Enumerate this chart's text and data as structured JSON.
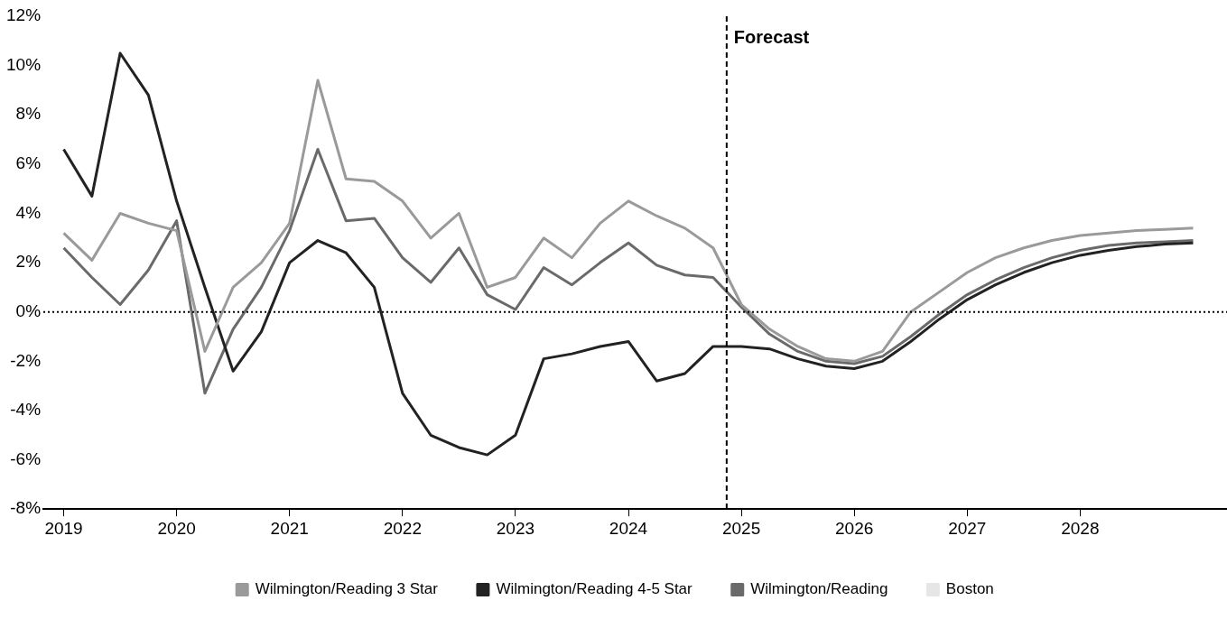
{
  "chart_data": {
    "type": "line",
    "x": [
      2019,
      2019.25,
      2019.5,
      2019.75,
      2020,
      2020.25,
      2020.5,
      2020.75,
      2021,
      2021.25,
      2021.5,
      2021.75,
      2022,
      2022.25,
      2022.5,
      2022.75,
      2023,
      2023.25,
      2023.5,
      2023.75,
      2024,
      2024.25,
      2024.5,
      2024.75,
      2025,
      2025.25,
      2025.5,
      2025.75,
      2026,
      2026.25,
      2026.5,
      2026.75,
      2027,
      2027.25,
      2027.5,
      2027.75,
      2028,
      2028.25,
      2028.5,
      2028.75,
      2029
    ],
    "series": [
      {
        "name": "Wilmington/Reading 3 Star",
        "color": "#9a9a9a",
        "values": [
          3.2,
          2.1,
          4.0,
          3.6,
          3.3,
          -1.6,
          1.0,
          2.0,
          3.6,
          9.4,
          5.4,
          5.3,
          4.5,
          3.0,
          4.0,
          1.0,
          1.4,
          3.0,
          2.2,
          3.6,
          4.5,
          3.9,
          3.4,
          2.6,
          0.3,
          -0.7,
          -1.4,
          -1.9,
          -2.0,
          -1.6,
          0.0,
          0.8,
          1.6,
          2.2,
          2.6,
          2.9,
          3.1,
          3.2,
          3.3,
          3.35,
          3.4
        ]
      },
      {
        "name": "Wilmington/Reading 4-5 Star",
        "color": "#222222",
        "values": [
          6.6,
          4.7,
          10.5,
          8.8,
          4.5,
          1.0,
          -2.4,
          -0.8,
          2.0,
          2.9,
          2.4,
          1.0,
          -3.3,
          -5.0,
          -5.5,
          -5.8,
          -5.0,
          -1.9,
          -1.7,
          -1.4,
          -1.2,
          -2.8,
          -2.5,
          -1.4,
          -1.4,
          -1.5,
          -1.9,
          -2.2,
          -2.3,
          -2.0,
          -1.2,
          -0.3,
          0.5,
          1.1,
          1.6,
          2.0,
          2.3,
          2.5,
          2.65,
          2.75,
          2.8
        ]
      },
      {
        "name": "Wilmington/Reading",
        "color": "#6a6a6a",
        "values": [
          2.6,
          1.4,
          0.3,
          1.7,
          3.7,
          -3.3,
          -0.7,
          1.0,
          3.3,
          6.6,
          3.7,
          3.8,
          2.2,
          1.2,
          2.6,
          0.7,
          0.1,
          1.8,
          1.1,
          2.0,
          2.8,
          1.9,
          1.5,
          1.4,
          0.2,
          -0.9,
          -1.6,
          -2.0,
          -2.1,
          -1.8,
          -1.0,
          -0.1,
          0.7,
          1.3,
          1.8,
          2.2,
          2.5,
          2.7,
          2.8,
          2.85,
          2.9
        ]
      },
      {
        "name": "Boston",
        "color": "#e6e6e6",
        "values": [
          null,
          null,
          null,
          null,
          null,
          null,
          null,
          null,
          null,
          null,
          null,
          null,
          null,
          null,
          null,
          null,
          null,
          null,
          null,
          null,
          null,
          null,
          null,
          null,
          null,
          null,
          null,
          null,
          null,
          null,
          null,
          null,
          null,
          null,
          null,
          null,
          null,
          null,
          null,
          null,
          null
        ]
      }
    ],
    "xlim": [
      2018.82,
      2029.3
    ],
    "xticks": [
      2019,
      2020,
      2021,
      2022,
      2023,
      2024,
      2025,
      2026,
      2027,
      2028
    ],
    "ylim": [
      -8,
      12
    ],
    "yticks": [
      {
        "value": -8,
        "label": "-8%"
      },
      {
        "value": -6,
        "label": "-6%"
      },
      {
        "value": -4,
        "label": "-4%"
      },
      {
        "value": -2,
        "label": "-2%"
      },
      {
        "value": 0,
        "label": "0%"
      },
      {
        "value": 2,
        "label": "2%"
      },
      {
        "value": 4,
        "label": "4%"
      },
      {
        "value": 6,
        "label": "6%"
      },
      {
        "value": 8,
        "label": "8%"
      },
      {
        "value": 10,
        "label": "10%"
      },
      {
        "value": 12,
        "label": "12%"
      }
    ],
    "ref_lines": [
      {
        "axis": "x",
        "value": 2024.87,
        "label": "Forecast",
        "color": "#000000",
        "line_style": "dashed"
      },
      {
        "axis": "y",
        "value": 0,
        "color": "#000000",
        "line_style": "dotted"
      }
    ],
    "grid": false,
    "legend": "bottom",
    "marker": "none",
    "line_style": "solid"
  }
}
